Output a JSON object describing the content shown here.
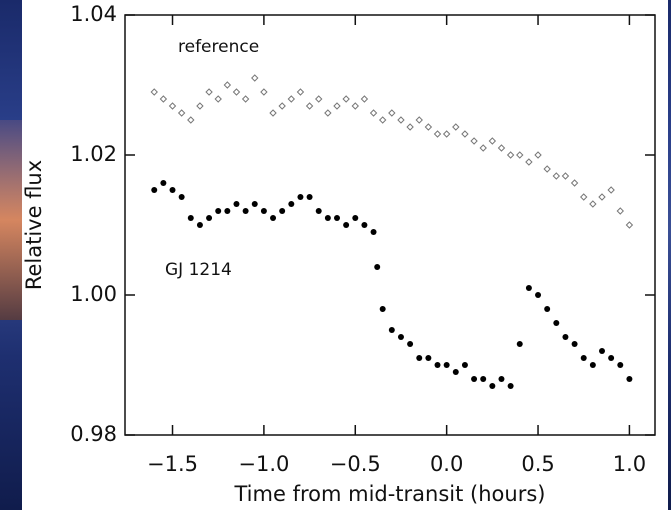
{
  "chart_data": {
    "type": "scatter",
    "xlabel": "Time from mid-transit (hours)",
    "ylabel": "Relative flux",
    "xlim": [
      -1.76,
      1.14
    ],
    "ylim": [
      0.98,
      1.04
    ],
    "xticks": [
      {
        "value": -1.5,
        "label": "−1.5"
      },
      {
        "value": -1.0,
        "label": "−1.0"
      },
      {
        "value": -0.5,
        "label": "−0.5"
      },
      {
        "value": 0.0,
        "label": "0.0"
      },
      0.5,
      {
        "value": 1.0,
        "label": "1.0"
      }
    ],
    "yticks": [
      0.98,
      {
        "value": 1.0,
        "label": "1.00"
      },
      1.02,
      1.04
    ],
    "series": [
      {
        "name": "reference",
        "color": "#777777",
        "marker": "open-diamond",
        "x": [
          -1.6,
          -1.55,
          -1.5,
          -1.45,
          -1.4,
          -1.35,
          -1.3,
          -1.25,
          -1.2,
          -1.15,
          -1.1,
          -1.05,
          -1.0,
          -0.95,
          -0.9,
          -0.85,
          -0.8,
          -0.75,
          -0.7,
          -0.65,
          -0.6,
          -0.55,
          -0.5,
          -0.45,
          -0.4,
          -0.35,
          -0.3,
          -0.25,
          -0.2,
          -0.15,
          -0.1,
          -0.05,
          0.0,
          0.05,
          0.1,
          0.15,
          0.2,
          0.25,
          0.3,
          0.35,
          0.4,
          0.45,
          0.5,
          0.55,
          0.6,
          0.65,
          0.7,
          0.75,
          0.8,
          0.85,
          0.9,
          0.95,
          1.0
        ],
        "values": [
          1.029,
          1.028,
          1.027,
          1.026,
          1.025,
          1.027,
          1.029,
          1.028,
          1.03,
          1.029,
          1.028,
          1.031,
          1.029,
          1.026,
          1.027,
          1.028,
          1.029,
          1.027,
          1.028,
          1.026,
          1.027,
          1.028,
          1.027,
          1.028,
          1.026,
          1.025,
          1.026,
          1.025,
          1.024,
          1.025,
          1.024,
          1.023,
          1.023,
          1.024,
          1.023,
          1.022,
          1.021,
          1.022,
          1.021,
          1.02,
          1.02,
          1.019,
          1.02,
          1.018,
          1.017,
          1.017,
          1.016,
          1.014,
          1.013,
          1.014,
          1.015,
          1.012,
          1.01
        ]
      },
      {
        "name": "GJ 1214",
        "color": "#000000",
        "marker": "filled-circle",
        "x": [
          -1.6,
          -1.55,
          -1.5,
          -1.45,
          -1.4,
          -1.35,
          -1.3,
          -1.25,
          -1.2,
          -1.15,
          -1.1,
          -1.05,
          -1.0,
          -0.95,
          -0.9,
          -0.85,
          -0.8,
          -0.75,
          -0.7,
          -0.65,
          -0.6,
          -0.55,
          -0.5,
          -0.45,
          -0.4,
          -0.38,
          -0.35,
          -0.3,
          -0.25,
          -0.2,
          -0.15,
          -0.1,
          -0.05,
          0.0,
          0.05,
          0.1,
          0.15,
          0.2,
          0.25,
          0.3,
          0.35,
          0.4,
          0.45,
          0.5,
          0.55,
          0.6,
          0.65,
          0.7,
          0.75,
          0.8,
          0.85,
          0.9,
          0.95,
          1.0
        ],
        "values": [
          1.015,
          1.016,
          1.015,
          1.014,
          1.011,
          1.01,
          1.011,
          1.012,
          1.012,
          1.013,
          1.012,
          1.013,
          1.012,
          1.011,
          1.012,
          1.013,
          1.014,
          1.014,
          1.012,
          1.011,
          1.011,
          1.01,
          1.011,
          1.01,
          1.009,
          1.004,
          0.998,
          0.995,
          0.994,
          0.993,
          0.991,
          0.991,
          0.99,
          0.99,
          0.989,
          0.99,
          0.988,
          0.988,
          0.987,
          0.988,
          0.987,
          0.993,
          1.001,
          1.0,
          0.998,
          0.996,
          0.994,
          0.993,
          0.991,
          0.99,
          0.992,
          0.991,
          0.99,
          0.988
        ]
      }
    ]
  }
}
